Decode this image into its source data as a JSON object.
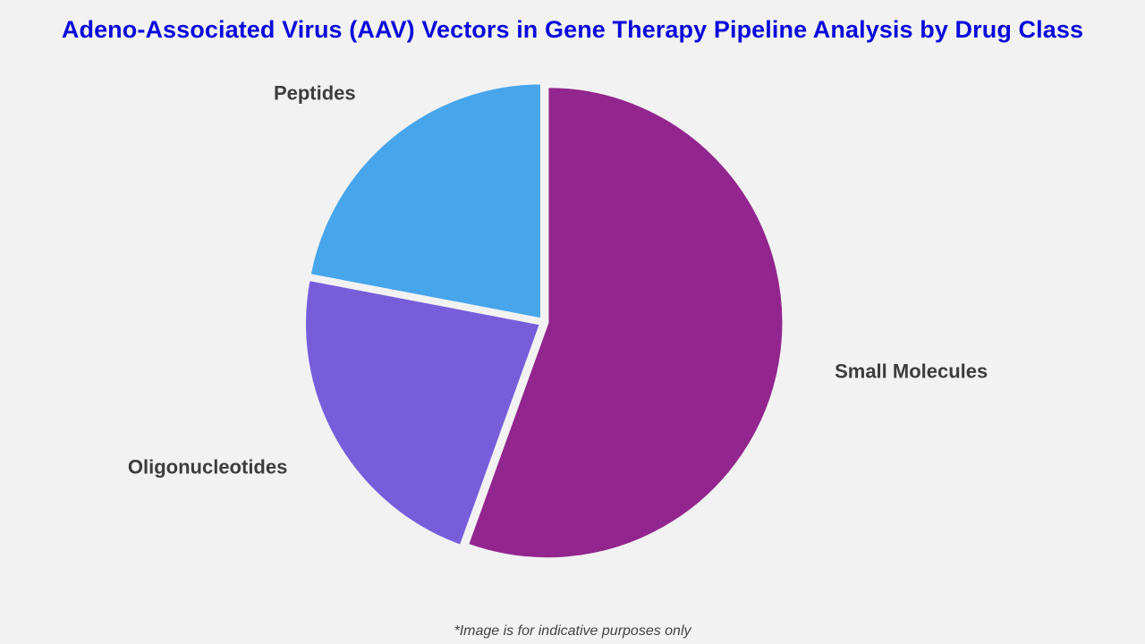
{
  "chart_data": {
    "type": "pie",
    "title": "Adeno-Associated Virus (AAV) Vectors in Gene Therapy Pipeline Analysis by Drug Class",
    "categories": [
      "Small Molecules",
      "Oligonucleotides",
      "Peptides"
    ],
    "values": [
      55.5,
      22.5,
      22.0
    ],
    "unit": "%",
    "colors": [
      "#93268e",
      "#765edb",
      "#47a5ec"
    ],
    "legend": "none",
    "data_labels": "category names outside slices"
  },
  "footnote": "*Image is for indicative purposes only",
  "colors": {
    "title": "#0a0adc",
    "background": "#f2f2f2",
    "label": "#3d3d3d"
  }
}
